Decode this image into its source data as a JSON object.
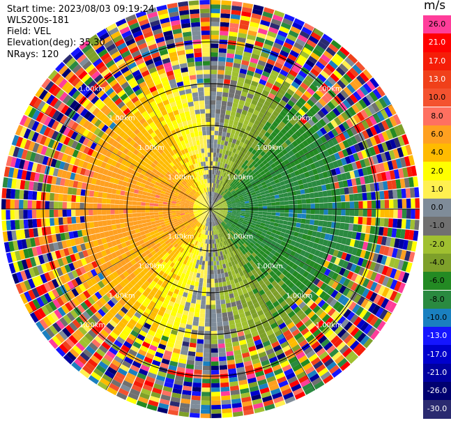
{
  "header": {
    "start_time": "Start time: 2023/08/03 09:19:24",
    "instrument": "WLS200s-181",
    "field": "Field: VEL",
    "elevation": "Elevation(deg): 35.30",
    "nrays": "NRays: 120"
  },
  "colorbar": {
    "unit": "m/s",
    "levels": [
      {
        "label": "26.0",
        "color": "#ff3d9a"
      },
      {
        "label": "21.0",
        "color": "#ff0000"
      },
      {
        "label": "17.0",
        "color": "#f51d08"
      },
      {
        "label": "13.0",
        "color": "#f0401a"
      },
      {
        "label": "10.0",
        "color": "#f4522f"
      },
      {
        "label": "8.0",
        "color": "#ff7060"
      },
      {
        "label": "6.0",
        "color": "#ffa020"
      },
      {
        "label": "4.0",
        "color": "#ffbb00"
      },
      {
        "label": "2.0",
        "color": "#ffff00"
      },
      {
        "label": "1.0",
        "color": "#fff050"
      },
      {
        "label": "0.0",
        "color": "#7f8c99"
      },
      {
        "label": "-1.0",
        "color": "#707070"
      },
      {
        "label": "-2.0",
        "color": "#a0c030"
      },
      {
        "label": "-4.0",
        "color": "#7ea02a"
      },
      {
        "label": "-6.0",
        "color": "#238a23"
      },
      {
        "label": "-8.0",
        "color": "#2a8a40"
      },
      {
        "label": "-10.0",
        "color": "#1a80c0"
      },
      {
        "label": "-13.0",
        "color": "#1515ff"
      },
      {
        "label": "-17.0",
        "color": "#0000cc"
      },
      {
        "label": "-21.0",
        "color": "#0000a0"
      },
      {
        "label": "-26.0",
        "color": "#000070"
      },
      {
        "label": "-30.0",
        "color": "#2a2a70"
      }
    ]
  },
  "chart_data": {
    "type": "heatmap",
    "projection": "polar PPI",
    "field": "VEL",
    "units": "m/s",
    "nrays": 120,
    "range_ring_labels": [
      "1.00km",
      "1.00km",
      "1.00km",
      "1.00km",
      "1.00km",
      "1.00km",
      "1.00km",
      "1.00km",
      "1.00km",
      "1.00km",
      "1.00km",
      "1.00km",
      "1.00km",
      "1.00km",
      "1.00km",
      "1.00km"
    ],
    "ring_count": 4,
    "spoke_count": 12,
    "pattern": {
      "upwind_azimuth_deg": 270,
      "max_positive_velocity": 6.0,
      "max_negative_velocity": -8.0,
      "clean_radius_fraction": 0.6,
      "noise_start_fraction": 0.55
    }
  }
}
